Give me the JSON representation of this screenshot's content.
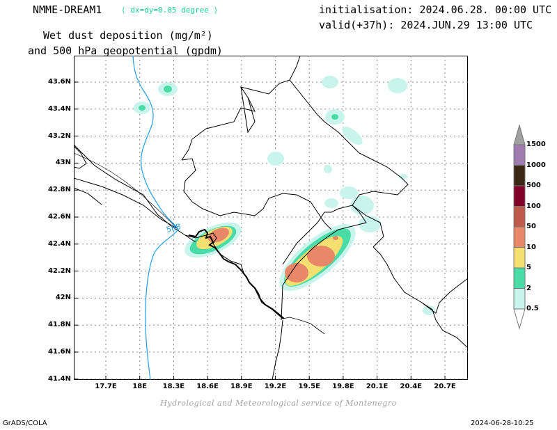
{
  "header": {
    "model": "NMME-DREAM1",
    "resolution": "( dx=dy=0.05 degree )",
    "init": "initialisation: 2024.06.28. 00:00 UTC",
    "valid": "valid(+37h): 2024.JUN.29 13:00 UTC",
    "title_line1": "Wet dust deposition (mg/m²)",
    "title_line2": "and 500 hPa geopotential (gpdm)"
  },
  "map": {
    "lon_ticks": [
      "17.7E",
      "18E",
      "18.3E",
      "18.6E",
      "18.9E",
      "19.2E",
      "19.5E",
      "19.8E",
      "20.1E",
      "20.4E",
      "20.7E"
    ],
    "lat_ticks": [
      "43.6N",
      "43.4N",
      "43.2N",
      "43N",
      "42.8N",
      "42.6N",
      "42.4N",
      "42.2N",
      "42N",
      "41.8N",
      "41.6N",
      "41.4N"
    ],
    "contour_label": "588",
    "contour_color": "#1e9ee8"
  },
  "legend": {
    "levels": [
      "1500",
      "1000",
      "500",
      "100",
      "50",
      "10",
      "5",
      "2",
      "0.5"
    ],
    "colors": [
      "#a07cb0",
      "#3a2814",
      "#80002a",
      "#c05a4a",
      "#e88868",
      "#f4e070",
      "#4adca8",
      "#c8f4ec"
    ],
    "top_arrow_color": "#a0a0a0"
  },
  "footer": {
    "credit": "Hydrological and Meteorological service of Montenegro",
    "software": "GrADS/COLA",
    "timestamp": "2024-06-28-10:25"
  }
}
